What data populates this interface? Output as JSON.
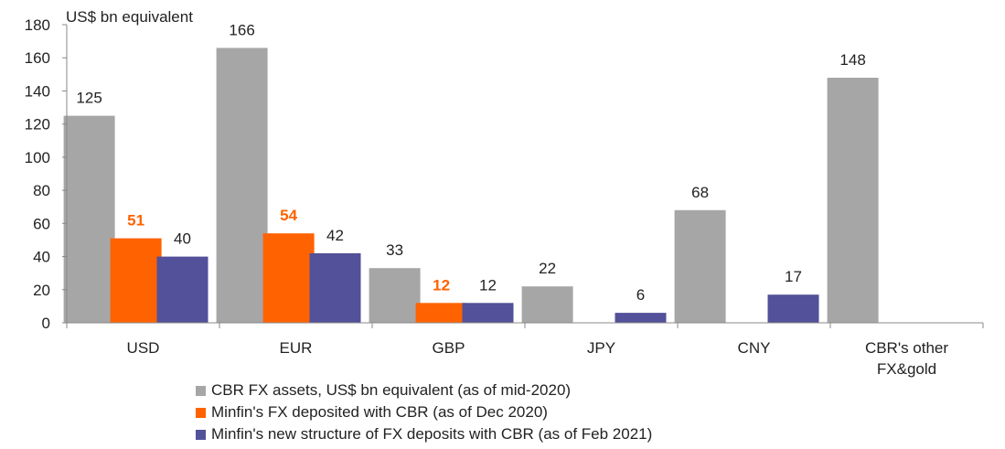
{
  "chart_data": {
    "type": "bar",
    "ylabel": "US$ bn equivalent",
    "ylim": [
      0,
      180
    ],
    "yticks": [
      0,
      20,
      40,
      60,
      80,
      100,
      120,
      140,
      160,
      180
    ],
    "categories": [
      "USD",
      "EUR",
      "GBP",
      "JPY",
      "CNY",
      "CBR's other FX&gold"
    ],
    "series": [
      {
        "name": "CBR FX assets, US$ bn equivalent (as of mid-2020)",
        "color": "#a6a6a6",
        "label_color": "#222222",
        "values": [
          125,
          166,
          33,
          22,
          68,
          148
        ],
        "labels": [
          "125",
          "166",
          "33",
          "22",
          "68",
          "148"
        ]
      },
      {
        "name": "Minfin's FX deposited with CBR (as of Dec 2020)",
        "color": "#ff6200",
        "label_color": "#ff6200",
        "values": [
          51,
          54,
          12,
          null,
          null,
          null
        ],
        "labels": [
          "51",
          "54",
          "12",
          "",
          "",
          ""
        ]
      },
      {
        "name": "Minfin's new structure of FX deposits with CBR (as of Feb 2021)",
        "color": "#525199",
        "label_color": "#222222",
        "values": [
          40,
          42,
          12,
          6,
          17,
          null
        ],
        "labels": [
          "40",
          "42",
          "12",
          "6",
          "17",
          ""
        ]
      }
    ],
    "grid": false,
    "legend_position": "bottom"
  }
}
